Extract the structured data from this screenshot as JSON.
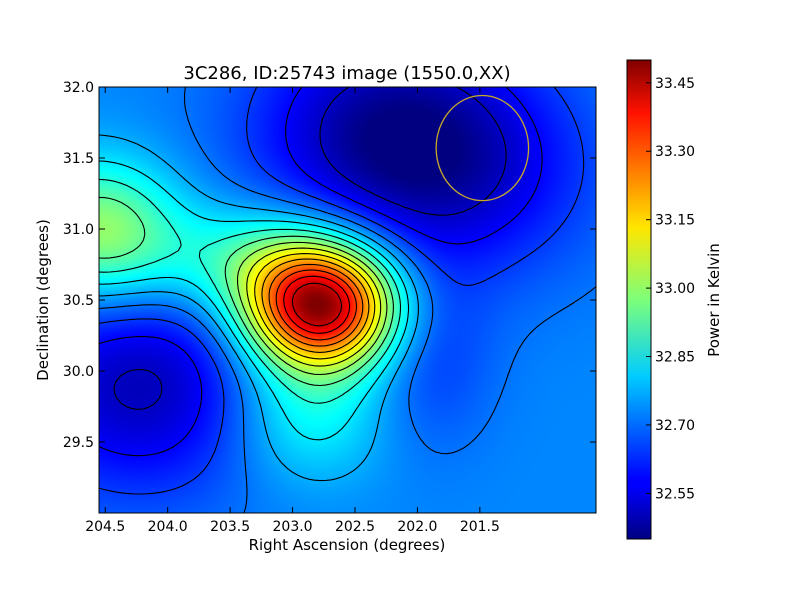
{
  "chart_data": {
    "type": "heatmap",
    "title": "3C286, ID:25743 image (1550.0,XX)",
    "xlabel": "Right Ascension (degrees)",
    "ylabel": "Declination (degrees)",
    "xlim": [
      204.55,
      200.57
    ],
    "ylim": [
      29.0,
      32.0
    ],
    "x_inverted": true,
    "x_ticks": [
      204.5,
      204.0,
      203.5,
      203.0,
      202.5,
      202.0,
      201.5
    ],
    "x_tick_labels": [
      "204.5",
      "204.0",
      "203.5",
      "203.0",
      "202.5",
      "202.0",
      "201.5"
    ],
    "y_ticks": [
      29.5,
      30.0,
      30.5,
      31.0,
      31.5,
      32.0
    ],
    "y_tick_labels": [
      "29.5",
      "30.0",
      "30.5",
      "31.0",
      "31.5",
      "32.0"
    ],
    "colorbar": {
      "label": "Power in Kelvin",
      "range": [
        32.45,
        33.5
      ],
      "ticks": [
        32.55,
        32.7,
        32.85,
        33.0,
        33.15,
        33.3,
        33.45
      ],
      "tick_labels": [
        "32.55",
        "32.70",
        "32.85",
        "33.00",
        "33.15",
        "33.30",
        "33.45"
      ],
      "colormap": "jet"
    },
    "features": [
      {
        "kind": "peak",
        "ra": 202.78,
        "dec": 30.45,
        "value": 33.47
      },
      {
        "kind": "ridge",
        "ra": 203.3,
        "dec": 30.78,
        "value": 33.05
      },
      {
        "kind": "edge-maximum",
        "ra": 204.55,
        "dec": 30.98,
        "value": 33.04
      },
      {
        "kind": "minimum",
        "ra": 204.2,
        "dec": 29.9,
        "value": 32.47
      },
      {
        "kind": "minimum",
        "ra": 202.3,
        "dec": 31.7,
        "value": 32.48
      },
      {
        "kind": "minimum",
        "ra": 201.6,
        "dec": 31.4,
        "value": 32.56
      },
      {
        "kind": "saddle",
        "ra": 202.9,
        "dec": 29.7,
        "value": 32.93
      },
      {
        "kind": "dip",
        "ra": 201.9,
        "dec": 30.1,
        "value": 32.62
      }
    ],
    "beam_circle": {
      "ra": 201.48,
      "dec": 31.57,
      "radius_deg": 0.37,
      "color": "#c8a82a"
    },
    "contours": true,
    "grid": false
  }
}
